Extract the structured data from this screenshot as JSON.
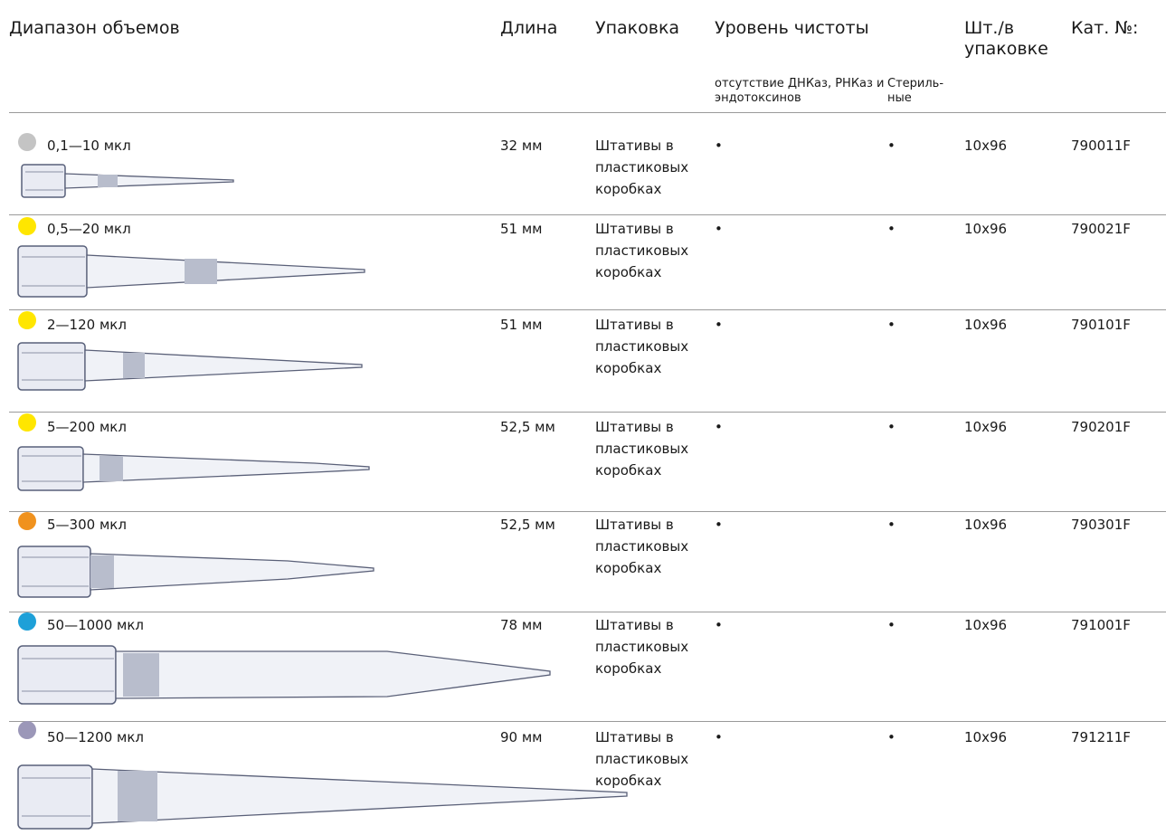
{
  "header": {
    "volume_range": "Диапазон объемов",
    "length": "Длина",
    "packaging": "Упаковка",
    "purity_level": "Уровень чистоты",
    "purity_sub_free": "отсутствие ДНКаз, РНКаз и эндотоксинов",
    "purity_sub_sterile": "Стериль- ные",
    "per_pack": "Шт./в упаковке",
    "cat_no": "Кат. №:"
  },
  "rows": [
    {
      "dot_color": "#c4c4c4",
      "volume": "0,1—10 мкл",
      "length": "32 мм",
      "packaging": "Штативы в пластиковых коробках",
      "free": "•",
      "sterile": "•",
      "qty": "10x96",
      "cat": "790011F"
    },
    {
      "dot_color": "#ffe600",
      "volume": "0,5—20 мкл",
      "length": "51 мм",
      "packaging": "Штативы в пластиковых коробках",
      "free": "•",
      "sterile": "•",
      "qty": "10x96",
      "cat": "790021F"
    },
    {
      "dot_color": "#ffe600",
      "volume": "2—120 мкл",
      "length": "51 мм",
      "packaging": "Штативы в пластиковых коробках",
      "free": "•",
      "sterile": "•",
      "qty": "10x96",
      "cat": "790101F"
    },
    {
      "dot_color": "#ffe600",
      "volume": "5—200 мкл",
      "length": "52,5 мм",
      "packaging": "Штативы в пластиковых коробках",
      "free": "•",
      "sterile": "•",
      "qty": "10x96",
      "cat": "790201F"
    },
    {
      "dot_color": "#f0921e",
      "volume": "5—300 мкл",
      "length": "52,5 мм",
      "packaging": "Штативы в пластиковых коробках",
      "free": "•",
      "sterile": "•",
      "qty": "10x96",
      "cat": "790301F"
    },
    {
      "dot_color": "#1ea0d8",
      "volume": "50—1000 мкл",
      "length": "78 мм",
      "packaging": "Штативы в пластиковых коробках",
      "free": "•",
      "sterile": "•",
      "qty": "10x96",
      "cat": "791001F"
    },
    {
      "dot_color": "#9b97b8",
      "volume": "50—1200 мкл",
      "length": "90 мм",
      "packaging": "Штативы в пластиковых коробках",
      "free": "•",
      "sterile": "•",
      "qty": "10x96",
      "cat": "791211F"
    }
  ]
}
